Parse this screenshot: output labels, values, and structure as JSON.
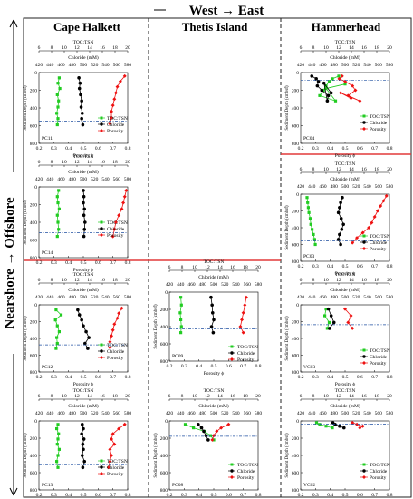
{
  "header": {
    "direction_x": "West → East",
    "direction_y": "Nearshore → Offshore",
    "columns": [
      "Cape Halkett",
      "Thetis Island",
      "Hammerhead"
    ]
  },
  "legend_labels": [
    "TOC:TSN",
    "Chloride",
    "Porosity"
  ],
  "axis_labels": {
    "toc": "TOC:TSN",
    "chloride": "Chloride (mM)",
    "porosity": "Porosity ϕ",
    "depth": "Sediment Depth (cmbsf)"
  },
  "ticks": {
    "toc": [
      "6",
      "8",
      "10",
      "12",
      "14",
      "16",
      "18",
      "20"
    ],
    "chloride": [
      "420",
      "440",
      "460",
      "480",
      "500",
      "520",
      "540",
      "560",
      "580"
    ],
    "porosity": [
      "0.2",
      "0.3",
      "0.4",
      "0.5",
      "0.6",
      "0.7",
      "0.8"
    ],
    "depth": [
      "0",
      "200",
      "400",
      "600",
      "800"
    ]
  },
  "colors": {
    "toc": "#22cc22",
    "chloride": "#000000",
    "porosity": "#ee1111",
    "divider": "#e23a3a",
    "sep": "#222222"
  },
  "chart_data": [
    {
      "type": "scatter",
      "label": "PC11",
      "xlim_toc": [
        6,
        20
      ],
      "xlim_chloride": [
        420,
        580
      ],
      "xlim_porosity": [
        0.2,
        0.8
      ],
      "ylim": [
        800,
        0
      ],
      "series": [
        {
          "name": "TOC:TSN",
          "x": [
            9.2,
            9.0,
            9.3,
            8.9,
            9.1,
            9.0,
            8.8,
            9.0,
            8.9
          ],
          "y": [
            60,
            120,
            180,
            250,
            320,
            390,
            460,
            520,
            590
          ]
        },
        {
          "name": "Chloride",
          "x": [
            492,
            494,
            493,
            495,
            497,
            496,
            498,
            497,
            499
          ],
          "y": [
            60,
            120,
            180,
            250,
            320,
            390,
            460,
            520,
            590
          ]
        },
        {
          "name": "Porosity",
          "x": [
            0.78,
            0.75,
            0.73,
            0.72,
            0.71,
            0.7,
            0.69,
            0.69,
            0.68
          ],
          "y": [
            40,
            100,
            160,
            230,
            300,
            370,
            440,
            510,
            580
          ]
        }
      ]
    },
    {
      "type": "scatter",
      "label": "PC14",
      "xlim_toc": [
        6,
        20
      ],
      "xlim_chloride": [
        420,
        580
      ],
      "xlim_porosity": [
        0.2,
        0.8
      ],
      "ylim": [
        800,
        0
      ],
      "series": [
        {
          "name": "TOC:TSN",
          "x": [
            9.1,
            8.9,
            9.0,
            9.2,
            8.9,
            9.0,
            9.1,
            8.9
          ],
          "y": [
            40,
            110,
            180,
            250,
            320,
            400,
            480,
            560
          ]
        },
        {
          "name": "Chloride",
          "x": [
            500,
            501,
            500,
            502,
            501,
            503,
            502,
            501
          ],
          "y": [
            40,
            110,
            180,
            250,
            320,
            400,
            480,
            560
          ]
        },
        {
          "name": "Porosity",
          "x": [
            0.79,
            0.78,
            0.77,
            0.76,
            0.74,
            0.72,
            0.71,
            0.7
          ],
          "y": [
            40,
            110,
            180,
            250,
            320,
            400,
            480,
            560
          ]
        }
      ]
    },
    {
      "type": "scatter",
      "label": "PC12",
      "xlim_toc": [
        6,
        20
      ],
      "xlim_chloride": [
        420,
        580
      ],
      "xlim_porosity": [
        0.2,
        0.8
      ],
      "ylim": [
        800,
        0
      ],
      "series": [
        {
          "name": "TOC:TSN",
          "x": [
            8.7,
            9.5,
            8.6,
            8.9,
            9.2,
            8.8,
            8.9,
            8.7
          ],
          "y": [
            60,
            120,
            180,
            250,
            320,
            390,
            460,
            520
          ]
        },
        {
          "name": "Chloride",
          "x": [
            490,
            493,
            497,
            500,
            505,
            510,
            503,
            508
          ],
          "y": [
            60,
            120,
            180,
            250,
            320,
            390,
            460,
            520
          ]
        },
        {
          "name": "Porosity",
          "x": [
            0.76,
            0.74,
            0.73,
            0.71,
            0.7,
            0.69,
            0.68,
            0.68
          ],
          "y": [
            40,
            100,
            160,
            230,
            300,
            370,
            440,
            510
          ]
        }
      ]
    },
    {
      "type": "scatter",
      "label": "PC13",
      "xlim_toc": [
        6,
        20
      ],
      "xlim_chloride": [
        420,
        580
      ],
      "xlim_porosity": [
        0.2,
        0.8
      ],
      "ylim": [
        800,
        0
      ],
      "series": [
        {
          "name": "TOC:TSN",
          "x": [
            9.0,
            8.8,
            9.1,
            9.0,
            8.9,
            9.2,
            9.0,
            8.8,
            9.0
          ],
          "y": [
            40,
            90,
            150,
            210,
            270,
            330,
            400,
            470,
            540
          ]
        },
        {
          "name": "Chloride",
          "x": [
            498,
            500,
            497,
            501,
            499,
            500,
            498,
            502,
            499
          ],
          "y": [
            40,
            90,
            150,
            210,
            270,
            330,
            400,
            470,
            540
          ]
        },
        {
          "name": "Porosity",
          "x": [
            0.78,
            0.74,
            0.7,
            0.69,
            0.71,
            0.68,
            0.69,
            0.68,
            0.67
          ],
          "y": [
            40,
            90,
            150,
            210,
            270,
            330,
            400,
            470,
            540
          ]
        }
      ]
    },
    {
      "type": "scatter",
      "label": "PC09",
      "xlim_toc": [
        6,
        20
      ],
      "xlim_chloride": [
        420,
        580
      ],
      "xlim_porosity": [
        0.2,
        0.8
      ],
      "ylim": [
        800,
        0
      ],
      "series": [
        {
          "name": "TOC:TSN",
          "x": [
            7.8,
            7.9,
            7.7,
            7.8,
            7.9,
            7.8
          ],
          "y": [
            60,
            150,
            240,
            320,
            400,
            470
          ]
        },
        {
          "name": "Chloride",
          "x": [
            495,
            497,
            498,
            500,
            496,
            499
          ],
          "y": [
            60,
            150,
            240,
            320,
            400,
            470
          ]
        },
        {
          "name": "Porosity",
          "x": [
            0.72,
            0.71,
            0.7,
            0.69,
            0.68,
            0.7
          ],
          "y": [
            60,
            150,
            240,
            320,
            400,
            470
          ]
        }
      ]
    },
    {
      "type": "scatter",
      "label": "PC08",
      "xlim_toc": [
        6,
        20
      ],
      "xlim_chloride": [
        420,
        580
      ],
      "xlim_porosity": [
        0.2,
        0.8
      ],
      "ylim": [
        800,
        0
      ],
      "series": [
        {
          "name": "TOC:TSN",
          "x": [
            8.5,
            9.8,
            11.5,
            12.5,
            13.0
          ],
          "y": [
            40,
            80,
            120,
            170,
            220
          ]
        },
        {
          "name": "Chloride",
          "x": [
            472,
            478,
            482,
            486,
            490
          ],
          "y": [
            40,
            80,
            120,
            170,
            220
          ]
        },
        {
          "name": "Porosity",
          "x": [
            0.6,
            0.55,
            0.52,
            0.5,
            0.49
          ],
          "y": [
            40,
            80,
            120,
            170,
            220
          ]
        }
      ]
    },
    {
      "type": "scatter",
      "label": "PC04",
      "xlim_toc": [
        6,
        20
      ],
      "xlim_chloride": [
        420,
        580
      ],
      "xlim_porosity": [
        0.2,
        0.8
      ],
      "ylim": [
        800,
        0
      ],
      "series": [
        {
          "name": "TOC:TSN",
          "x": [
            12.0,
            11.0,
            10.5,
            10.0,
            9.6,
            9.0,
            11.5,
            10.0,
            13.0
          ],
          "y": [
            40,
            70,
            100,
            150,
            200,
            260,
            320,
            180,
            130
          ]
        },
        {
          "name": "Chloride",
          "x": [
            440,
            448,
            452,
            450,
            458,
            470,
            468,
            462,
            475
          ],
          "y": [
            40,
            70,
            100,
            150,
            200,
            260,
            320,
            120,
            230
          ]
        },
        {
          "name": "Porosity",
          "x": [
            0.48,
            0.46,
            0.5,
            0.55,
            0.57,
            0.52,
            0.6,
            0.47,
            0.54
          ],
          "y": [
            40,
            70,
            100,
            150,
            200,
            260,
            320,
            230,
            290
          ]
        }
      ]
    },
    {
      "type": "scatter",
      "label": "PC03",
      "xlim_toc": [
        6,
        20
      ],
      "xlim_chloride": [
        420,
        580
      ],
      "xlim_porosity": [
        0.2,
        0.8
      ],
      "ylim": [
        800,
        0
      ],
      "series": [
        {
          "name": "TOC:TSN",
          "x": [
            7.0,
            7.1,
            7.2,
            7.3,
            7.5,
            7.6,
            7.8,
            8.0,
            8.2,
            8.3
          ],
          "y": [
            40,
            100,
            160,
            220,
            290,
            360,
            420,
            480,
            540,
            600
          ]
        },
        {
          "name": "Chloride",
          "x": [
            495,
            492,
            490,
            488,
            493,
            497,
            494,
            490,
            488,
            492
          ],
          "y": [
            40,
            100,
            160,
            220,
            290,
            360,
            420,
            480,
            540,
            600
          ]
        },
        {
          "name": "Porosity",
          "x": [
            0.78,
            0.76,
            0.74,
            0.72,
            0.7,
            0.68,
            0.66,
            0.62,
            0.58,
            0.55
          ],
          "y": [
            20,
            80,
            140,
            200,
            270,
            340,
            400,
            460,
            520,
            580
          ]
        }
      ]
    },
    {
      "type": "scatter",
      "label": "VC03",
      "xlim_toc": [
        6,
        20
      ],
      "xlim_chloride": [
        420,
        580
      ],
      "xlim_porosity": [
        0.2,
        0.8
      ],
      "ylim": [
        800,
        0
      ],
      "series": [
        {
          "name": "TOC:TSN",
          "x": [
            10.0,
            9.8,
            10.5,
            10.2
          ],
          "y": [
            50,
            130,
            210,
            280
          ]
        },
        {
          "name": "Chloride",
          "x": [
            470,
            475,
            480,
            472
          ],
          "y": [
            50,
            130,
            210,
            280
          ]
        },
        {
          "name": "Porosity",
          "x": [
            0.5,
            0.54,
            0.52,
            0.55
          ],
          "y": [
            50,
            130,
            210,
            280
          ]
        }
      ]
    },
    {
      "type": "scatter",
      "label": "VC02",
      "xlim_toc": [
        6,
        20
      ],
      "xlim_chloride": [
        420,
        580
      ],
      "xlim_porosity": [
        0.2,
        0.8
      ],
      "ylim": [
        800,
        0
      ],
      "series": [
        {
          "name": "TOC:TSN",
          "x": [
            8.5,
            9.0,
            10.0,
            11.0
          ],
          "y": [
            20,
            40,
            60,
            80
          ]
        },
        {
          "name": "Chloride",
          "x": [
            478,
            482,
            490,
            498
          ],
          "y": [
            20,
            40,
            60,
            80
          ]
        },
        {
          "name": "Porosity",
          "x": [
            0.55,
            0.58,
            0.62,
            0.6
          ],
          "y": [
            20,
            40,
            60,
            80
          ]
        }
      ]
    }
  ]
}
